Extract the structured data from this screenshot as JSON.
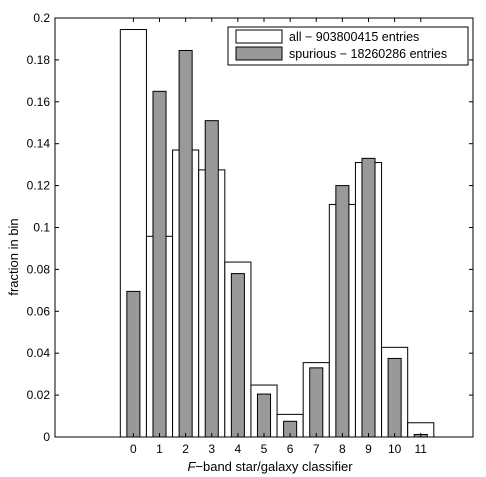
{
  "chart_data": {
    "type": "bar",
    "categories": [
      "0",
      "1",
      "2",
      "3",
      "4",
      "5",
      "6",
      "7",
      "8",
      "9",
      "10",
      "11"
    ],
    "series": [
      {
        "name": "all − 903800415 entries",
        "style": "outline",
        "color": "#ffffff",
        "values": [
          0.1945,
          0.0958,
          0.137,
          0.1275,
          0.0835,
          0.0248,
          0.0108,
          0.0355,
          0.111,
          0.131,
          0.0428,
          0.0068
        ]
      },
      {
        "name": "spurious − 18260286 entries",
        "style": "filled",
        "color": "#999999",
        "values": [
          0.0695,
          0.165,
          0.1845,
          0.151,
          0.078,
          0.0205,
          0.0075,
          0.033,
          0.12,
          0.133,
          0.0375,
          0.0012
        ]
      }
    ],
    "xlabel_italic": "F",
    "xlabel_rest": "−band star/galaxy classifier",
    "ylabel": "fraction in bin",
    "ylim": [
      0,
      0.2
    ],
    "xlim": [
      -3,
      13
    ],
    "yticks": [
      "0",
      "0.02",
      "0.04",
      "0.06",
      "0.08",
      "0.1",
      "0.12",
      "0.14",
      "0.16",
      "0.18",
      "0.2"
    ],
    "grid": false,
    "legend_position": "top-right"
  }
}
